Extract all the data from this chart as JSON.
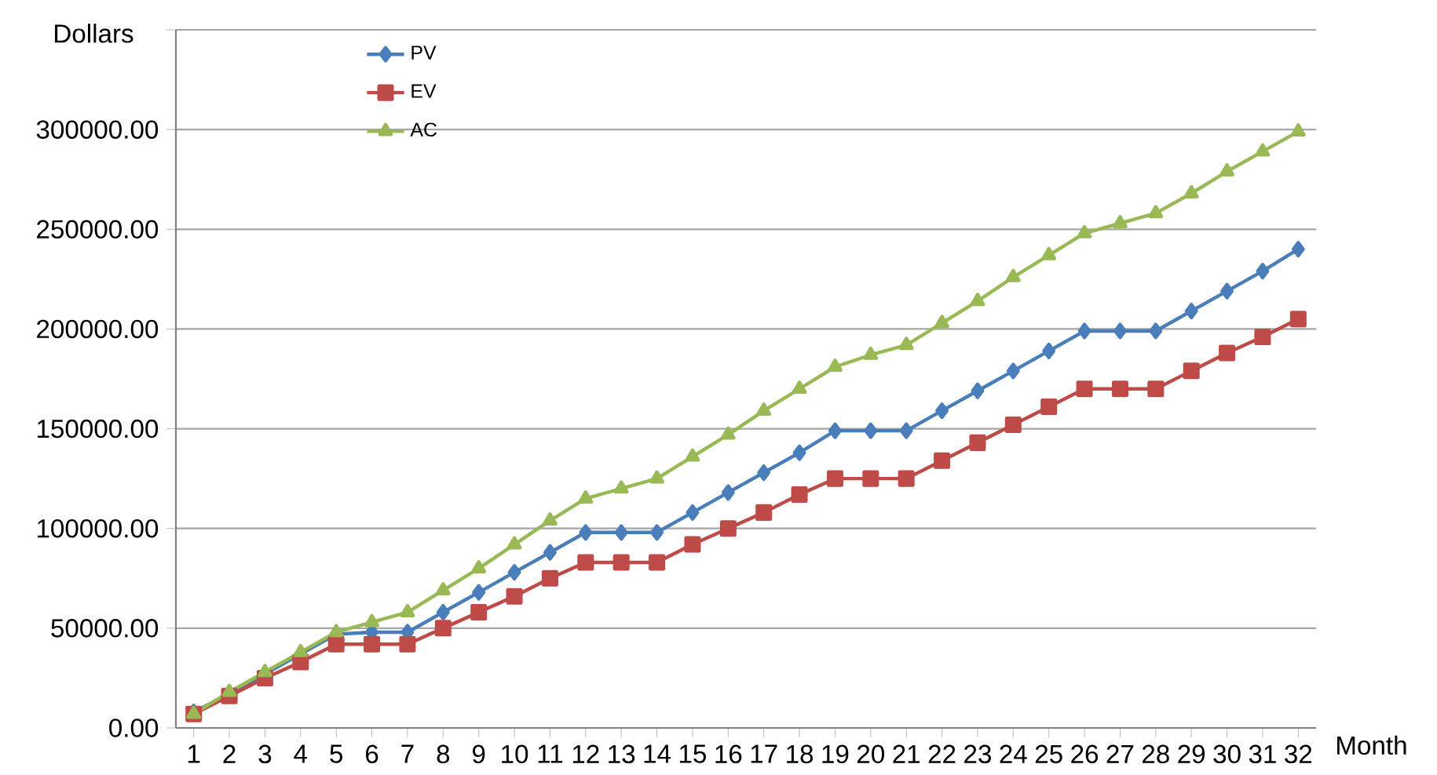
{
  "chart_data": {
    "type": "line",
    "xlabel": "Month",
    "ylabel": "Dollars",
    "categories": [
      "1",
      "2",
      "3",
      "4",
      "5",
      "6",
      "7",
      "8",
      "9",
      "10",
      "11",
      "12",
      "13",
      "14",
      "15",
      "16",
      "17",
      "18",
      "19",
      "20",
      "21",
      "22",
      "23",
      "24",
      "25",
      "26",
      "27",
      "28",
      "29",
      "30",
      "31",
      "32"
    ],
    "series": [
      {
        "name": "PV",
        "color": "#4a7ebb",
        "marker": "diamond",
        "values": [
          8000,
          17000,
          27000,
          37000,
          47000,
          48000,
          48000,
          58000,
          68000,
          78000,
          88000,
          98000,
          98000,
          98000,
          108000,
          118000,
          128000,
          138000,
          149000,
          149000,
          149000,
          159000,
          169000,
          179000,
          189000,
          199000,
          199000,
          199000,
          209000,
          219000,
          229000,
          240000
        ]
      },
      {
        "name": "EV",
        "color": "#be4b48",
        "marker": "square",
        "values": [
          7000,
          16000,
          25000,
          33000,
          42000,
          42000,
          42000,
          50000,
          58000,
          66000,
          75000,
          83000,
          83000,
          83000,
          92000,
          100000,
          108000,
          117000,
          125000,
          125000,
          125000,
          134000,
          143000,
          152000,
          161000,
          170000,
          170000,
          170000,
          179000,
          188000,
          196000,
          205000
        ]
      },
      {
        "name": "AC",
        "color": "#98b954",
        "marker": "triangle",
        "values": [
          7000,
          18000,
          28000,
          38000,
          48000,
          53000,
          58000,
          69000,
          80000,
          92000,
          104000,
          115000,
          120000,
          125000,
          136000,
          147000,
          159000,
          170000,
          181000,
          187000,
          192000,
          203000,
          214000,
          226000,
          237000,
          248000,
          253000,
          258000,
          268000,
          279000,
          289000,
          299000
        ]
      }
    ],
    "ylim": [
      0,
      350000
    ],
    "yticks": [
      {
        "value": 0,
        "label": "0.00"
      },
      {
        "value": 50000,
        "label": "50000.00"
      },
      {
        "value": 100000,
        "label": "100000.00"
      },
      {
        "value": 150000,
        "label": "150000.00"
      },
      {
        "value": 200000,
        "label": "200000.00"
      },
      {
        "value": 250000,
        "label": "250000.00"
      },
      {
        "value": 300000,
        "label": "300000.00"
      },
      {
        "value": 350000,
        "label": null
      }
    ],
    "grid": "y",
    "legend": "top left",
    "line_style": "solid"
  }
}
